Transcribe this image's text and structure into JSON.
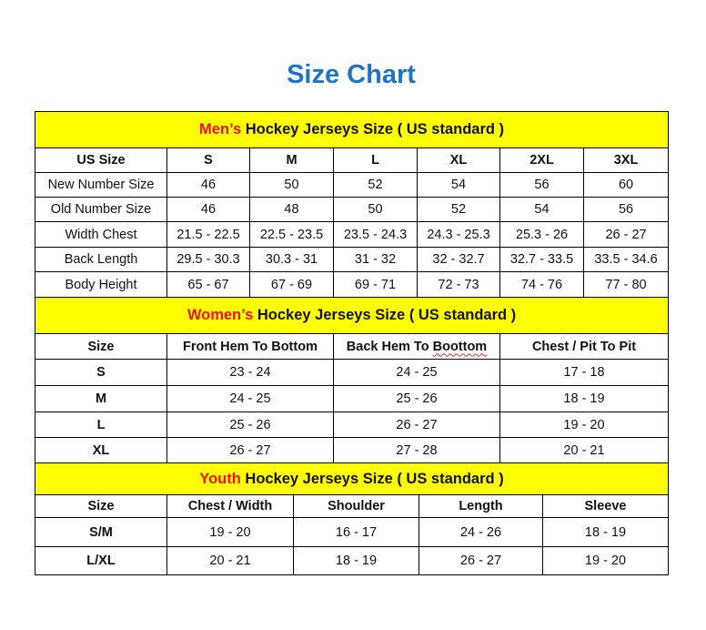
{
  "title": "Size Chart",
  "colors": {
    "title": "#1f74c4",
    "header_bg": "#ffff00",
    "header_accent": "#ee1111"
  },
  "sections": [
    {
      "id": "men",
      "heading_accent": "Men’s",
      "heading_rest": " Hockey Jerseys Size ( US standard )",
      "columns": [
        "US Size",
        "S",
        "M",
        "L",
        "XL",
        "2XL",
        "3XL"
      ],
      "rows": [
        [
          "New Number Size",
          "46",
          "50",
          "52",
          "54",
          "56",
          "60"
        ],
        [
          "Old Number Size",
          "46",
          "48",
          "50",
          "52",
          "54",
          "56"
        ],
        [
          "Width Chest",
          "21.5 - 22.5",
          "22.5 - 23.5",
          "23.5 - 24.3",
          "24.3 - 25.3",
          "25.3 - 26",
          "26 - 27"
        ],
        [
          "Back Length",
          "29.5 - 30.3",
          "30.3 - 31",
          "31 - 32",
          "32 - 32.7",
          "32.7 - 33.5",
          "33.5 - 34.6"
        ],
        [
          "Body Height",
          "65 - 67",
          "67 - 69",
          "69 - 71",
          "72 - 73",
          "74 - 76",
          "77 - 80"
        ]
      ]
    },
    {
      "id": "women",
      "heading_accent": "Women’s",
      "heading_rest": " Hockey Jerseys Size ( US standard )",
      "columns": [
        "Size",
        "Front Hem To Bottom",
        "Back Hem To Boottom",
        "Chest / Pit To Pit"
      ],
      "rows": [
        [
          "S",
          "23 - 24",
          "24 - 25",
          "17 - 18"
        ],
        [
          "M",
          "24 - 25",
          "25 - 26",
          "18 - 19"
        ],
        [
          "L",
          "25 - 26",
          "26 - 27",
          "19 - 20"
        ],
        [
          "XL",
          "26 - 27",
          "27 - 28",
          "20 - 21"
        ]
      ]
    },
    {
      "id": "youth",
      "heading_accent": "Youth",
      "heading_rest": " Hockey Jerseys Size ( US standard )",
      "columns": [
        "Size",
        "Chest / Width",
        "Shoulder",
        "Length",
        "Sleeve"
      ],
      "rows": [
        [
          "S/M",
          "19 - 20",
          "16 - 17",
          "24 - 26",
          "18 - 19"
        ],
        [
          "L/XL",
          "20 - 21",
          "18 - 19",
          "26 - 27",
          "19 - 20"
        ]
      ]
    }
  ]
}
